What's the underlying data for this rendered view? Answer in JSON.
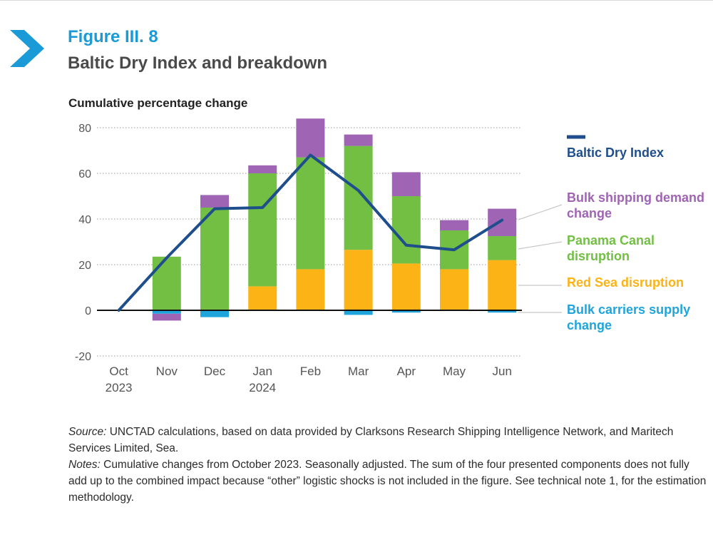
{
  "header": {
    "figure_number": "Figure III. 8",
    "title": "Baltic Dry Index and breakdown"
  },
  "colors": {
    "accent": "#1a9ad6",
    "bdi_line": "#1f4e8c",
    "bulk_shipping_demand": "#a064b4",
    "panama_canal": "#72bf44",
    "red_sea": "#fbb315",
    "bulk_carriers_supply": "#1fa4dc"
  },
  "chart_data": {
    "type": "bar",
    "stacked": true,
    "title": "",
    "ylabel": "Cumulative percentage change",
    "xlabel": "",
    "ylim": [
      -20,
      80
    ],
    "yticks": [
      -20,
      0,
      20,
      40,
      60,
      80
    ],
    "grid": "dotted horizontal",
    "legend_position": "right",
    "categories": [
      "Oct",
      "Nov",
      "Dec",
      "Jan",
      "Feb",
      "Mar",
      "Apr",
      "May",
      "Jun"
    ],
    "category_years": [
      "2023",
      "",
      "",
      "2024",
      "",
      "",
      "",
      "",
      ""
    ],
    "series": [
      {
        "name": "Bulk carriers supply change",
        "kind": "bar",
        "color": "#1fa4dc",
        "values": [
          0,
          -1.5,
          -3,
          0,
          0,
          -2,
          -1,
          0,
          -1
        ]
      },
      {
        "name": "Red Sea disruption",
        "kind": "bar",
        "color": "#fbb315",
        "values": [
          0,
          0,
          0,
          10.5,
          18,
          26.5,
          20.5,
          18,
          22
        ]
      },
      {
        "name": "Panama Canal disruption",
        "kind": "bar",
        "color": "#72bf44",
        "values": [
          0,
          23.5,
          45,
          49.5,
          49,
          45.5,
          29.5,
          17,
          10.5
        ]
      },
      {
        "name": "Bulk shipping demand change",
        "kind": "bar",
        "color": "#a064b4",
        "values": [
          0,
          -3,
          5.5,
          3.5,
          17,
          5,
          10.5,
          4.5,
          12
        ]
      },
      {
        "name": "Baltic Dry Index",
        "kind": "line",
        "color": "#1f4e8c",
        "values": [
          0,
          23,
          44.5,
          45,
          68,
          52.5,
          28.5,
          26.5,
          39.5
        ]
      }
    ]
  },
  "footer": {
    "source_label": "Source:",
    "source_text": " UNCTAD calculations, based on data provided by Clarksons Research Shipping Intelligence Network, and Maritech Services Limited, Sea.",
    "notes_label": "Notes:",
    "notes_text": " Cumulative changes from October 2023. Seasonally adjusted. The sum of the four presented components does not fully add up to the combined impact because “other” logistic shocks is not included in the figure. See technical note 1, for the estimation methodology."
  }
}
